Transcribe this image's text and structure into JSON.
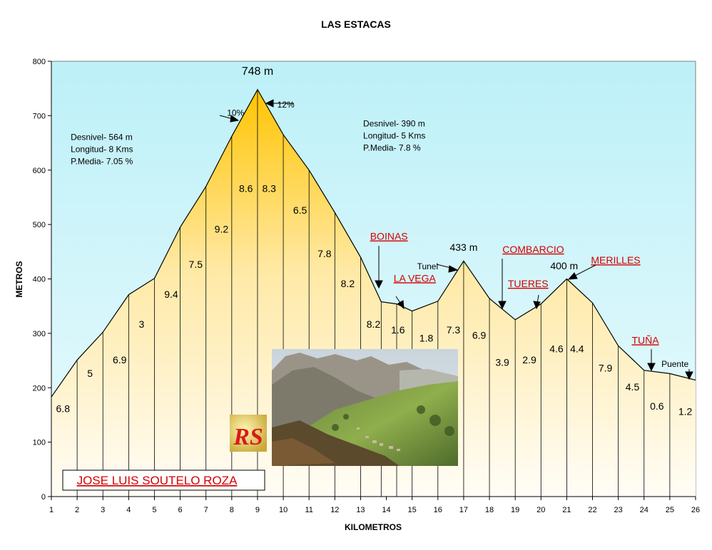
{
  "chart_data": {
    "type": "area",
    "title": "LAS ESTACAS",
    "xlabel": "KILOMETROS",
    "ylabel": "METROS",
    "xlim": [
      1,
      26
    ],
    "ylim": [
      0,
      800
    ],
    "yticks": [
      "0",
      "100",
      "200",
      "300",
      "400",
      "500",
      "600",
      "700",
      "800"
    ],
    "xticks": [
      "1",
      "2",
      "3",
      "4",
      "5",
      "6",
      "7",
      "8",
      "9",
      "10",
      "11",
      "12",
      "13",
      "14",
      "15",
      "16",
      "17",
      "18",
      "19",
      "20",
      "21",
      "22",
      "23",
      "24",
      "25",
      "26"
    ],
    "profile": [
      {
        "x": 1,
        "y": 183
      },
      {
        "x": 2,
        "y": 251
      },
      {
        "x": 3,
        "y": 302
      },
      {
        "x": 4,
        "y": 371
      },
      {
        "x": 5,
        "y": 401
      },
      {
        "x": 6,
        "y": 495
      },
      {
        "x": 7,
        "y": 570
      },
      {
        "x": 8,
        "y": 662
      },
      {
        "x": 9,
        "y": 748
      },
      {
        "x": 10,
        "y": 665
      },
      {
        "x": 11,
        "y": 600
      },
      {
        "x": 12,
        "y": 522
      },
      {
        "x": 13,
        "y": 440
      },
      {
        "x": 13.8,
        "y": 358
      },
      {
        "x": 14.4,
        "y": 354
      },
      {
        "x": 15,
        "y": 341
      },
      {
        "x": 16,
        "y": 359
      },
      {
        "x": 17,
        "y": 433
      },
      {
        "x": 18,
        "y": 364
      },
      {
        "x": 19,
        "y": 325
      },
      {
        "x": 20,
        "y": 354
      },
      {
        "x": 21,
        "y": 400
      },
      {
        "x": 22,
        "y": 356
      },
      {
        "x": 23,
        "y": 277
      },
      {
        "x": 24,
        "y": 232
      },
      {
        "x": 25,
        "y": 226
      },
      {
        "x": 26,
        "y": 214
      }
    ],
    "segment_gradients": [
      {
        "x": 1.45,
        "y": 155,
        "label": "6.8"
      },
      {
        "x": 2.5,
        "y": 220,
        "label": "5"
      },
      {
        "x": 3.65,
        "y": 245,
        "label": "6.9"
      },
      {
        "x": 4.5,
        "y": 310,
        "label": "3"
      },
      {
        "x": 5.65,
        "y": 365,
        "label": "9.4"
      },
      {
        "x": 6.6,
        "y": 420,
        "label": "7.5"
      },
      {
        "x": 7.6,
        "y": 485,
        "label": "9.2"
      },
      {
        "x": 8.55,
        "y": 560,
        "label": "8.6"
      },
      {
        "x": 9.45,
        "y": 560,
        "label": "8.3"
      },
      {
        "x": 10.65,
        "y": 520,
        "label": "6.5"
      },
      {
        "x": 11.6,
        "y": 440,
        "label": "7.8"
      },
      {
        "x": 12.5,
        "y": 385,
        "label": "8.2"
      },
      {
        "x": 13.5,
        "y": 310,
        "label": "8.2"
      },
      {
        "x": 14.45,
        "y": 300,
        "label": "1.6"
      },
      {
        "x": 15.55,
        "y": 285,
        "label": "1.8"
      },
      {
        "x": 16.6,
        "y": 300,
        "label": "7.3"
      },
      {
        "x": 17.6,
        "y": 290,
        "label": "6.9"
      },
      {
        "x": 18.5,
        "y": 240,
        "label": "3.9"
      },
      {
        "x": 19.55,
        "y": 245,
        "label": "2.9"
      },
      {
        "x": 20.6,
        "y": 265,
        "label": "4.6"
      },
      {
        "x": 21.4,
        "y": 265,
        "label": "4.4"
      },
      {
        "x": 22.5,
        "y": 230,
        "label": "7.9"
      },
      {
        "x": 23.55,
        "y": 195,
        "label": "4.5"
      },
      {
        "x": 24.5,
        "y": 160,
        "label": "0.6"
      },
      {
        "x": 25.6,
        "y": 150,
        "label": "1.2"
      }
    ],
    "peak_labels": [
      {
        "x": 9,
        "y": 775,
        "label": "748 m"
      },
      {
        "x": 17,
        "y": 452,
        "label": "433 m"
      },
      {
        "x": 20.9,
        "y": 418,
        "label": "400 m"
      }
    ],
    "grade_marks": [
      {
        "label": "10%",
        "x": 8.15,
        "y": 700
      },
      {
        "label": "12%",
        "x": 10.1,
        "y": 715
      }
    ],
    "places": [
      {
        "label": "BOINAS",
        "x": 14.1,
        "y": 472
      },
      {
        "label": "LA VEGA",
        "x": 15.1,
        "y": 395
      },
      {
        "label": "Tunel",
        "x": 15.6,
        "y": 418,
        "plain": true
      },
      {
        "label": "COMBARCIO",
        "x": 19.7,
        "y": 448
      },
      {
        "label": "TUERES",
        "x": 19.5,
        "y": 385
      },
      {
        "label": "MERILLES",
        "x": 22.9,
        "y": 428
      },
      {
        "label": "TUÑA",
        "x": 24.05,
        "y": 281
      },
      {
        "label": "Puente",
        "x": 25.2,
        "y": 238,
        "plain": true
      }
    ],
    "stats_blocks": [
      {
        "x": 1.75,
        "y": 655,
        "lines": [
          "Desnivel- 564 m",
          "Longitud- 8 Kms",
          "P.Media- 7.05 %"
        ]
      },
      {
        "x": 13.1,
        "y": 680,
        "lines": [
          "Desnivel- 390 m",
          "Longitud- 5 Kms",
          "P.Media- 7.8 %"
        ]
      }
    ],
    "colors": {
      "sky": "#bff2f8",
      "fill_top": "#ffc400",
      "fill_bottom": "#fffdf4",
      "place": "#d40000",
      "line": "#000000"
    },
    "grid": false
  },
  "author": "JOSE LUIS SOUTELO ROZA",
  "logo_letters": "RS"
}
